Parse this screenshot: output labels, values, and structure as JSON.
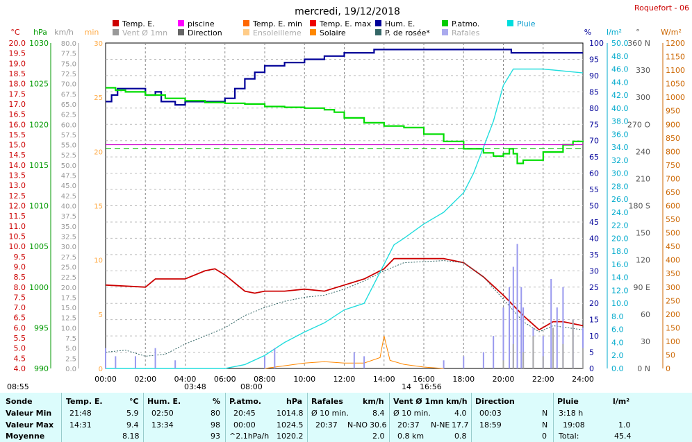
{
  "header": {
    "title": "mercredi, 19/12/2018",
    "station": "Roquefort - 06"
  },
  "legend": [
    {
      "label": "Temp. E.",
      "color": "#cc0000"
    },
    {
      "label": "piscine",
      "color": "#ff00ff"
    },
    {
      "label": "Temp. E. min",
      "color": "#ff6600"
    },
    {
      "label": "Temp. E. max",
      "color": "#ee0000"
    },
    {
      "label": "Hum. E.",
      "color": "#000099"
    },
    {
      "label": "P.atmo.",
      "color": "#00cc00"
    },
    {
      "label": "Pluie",
      "color": "#00dddd"
    },
    {
      "label": "Vent Ø 1mn",
      "color": "#999999"
    },
    {
      "label": "Direction",
      "color": "#666666"
    },
    {
      "label": "Ensoleilleme",
      "color": "#ffcc88"
    },
    {
      "label": "Solaire",
      "color": "#ff8800"
    },
    {
      "label": "P. de rosée*",
      "color": "#336666"
    },
    {
      "label": "Rafales",
      "color": "#aaaaee"
    }
  ],
  "axis_units": [
    "°C",
    "hPa",
    "km/h",
    "min",
    "%",
    "l/m²",
    "°",
    "W/m²"
  ],
  "axis_ticks": {
    "temp": [
      "4.0",
      "4.5",
      "5.0",
      "5.5",
      "6.0",
      "6.5",
      "7.0",
      "7.5",
      "8.0",
      "8.5",
      "9.0",
      "9.5",
      "10.0",
      "10.5",
      "11.0",
      "11.5",
      "12.0",
      "12.5",
      "13.0",
      "13.5",
      "14.0",
      "14.5",
      "15.0",
      "15.5",
      "16.0",
      "16.5",
      "17.0",
      "17.5",
      "18.0",
      "18.5",
      "19.0",
      "19.5",
      "20.0"
    ],
    "hpa": [
      "990",
      "995",
      "1000",
      "1005",
      "1010",
      "1015",
      "1020",
      "1025",
      "1030"
    ],
    "kmh": [
      "0.0",
      "2.5",
      "5.0",
      "7.5",
      "10.0",
      "12.5",
      "15.0",
      "17.5",
      "20.0",
      "22.5",
      "25.0",
      "27.5",
      "30.0",
      "32.5",
      "35.0",
      "37.5",
      "40.0",
      "42.5",
      "45.0",
      "47.5",
      "50.0",
      "52.5",
      "55.0",
      "57.5",
      "60.0",
      "62.5",
      "65.0",
      "67.5",
      "70.0",
      "72.5",
      "75.0",
      "77.5",
      "80.0"
    ],
    "min": [
      "0",
      "5",
      "10",
      "15",
      "20",
      "25",
      "30"
    ],
    "pct": [
      "0",
      "5",
      "10",
      "15",
      "20",
      "25",
      "30",
      "35",
      "40",
      "45",
      "50",
      "55",
      "60",
      "65",
      "70",
      "75",
      "80",
      "85",
      "90",
      "95",
      "100"
    ],
    "rain": [
      "0.0",
      "2.0",
      "4.0",
      "6.0",
      "8.0",
      "10.0",
      "12.0",
      "14.0",
      "16.0",
      "18.0",
      "20.0",
      "22.0",
      "24.0",
      "26.0",
      "28.0",
      "30.0",
      "32.0",
      "34.0",
      "36.0",
      "38.0",
      "40.0",
      "42.0",
      "44.0",
      "46.0",
      "48.0",
      "50.0"
    ],
    "deg": [
      "0 N",
      "30",
      "60",
      "90 E",
      "120",
      "150",
      "180 S",
      "210",
      "240",
      "270 O",
      "300",
      "330",
      "360 N"
    ],
    "wm2": [
      "0",
      "50",
      "100",
      "150",
      "200",
      "250",
      "300",
      "350",
      "400",
      "450",
      "500",
      "550",
      "600",
      "650",
      "700",
      "750",
      "800",
      "850",
      "900",
      "950",
      "1000",
      "1050",
      "1100",
      "1150",
      "1200"
    ],
    "x": [
      "00:00",
      "02:00",
      "04:00",
      "06:00",
      "08:00",
      "10:00",
      "12:00",
      "14:00",
      "16:00",
      "18:00",
      "20:00",
      "22:00",
      "24:00"
    ]
  },
  "sun_marks": [
    "08:55",
    "03:48",
    "08:00",
    "14",
    "16:56"
  ],
  "chart_data": {
    "type": "line",
    "x_unit": "hour",
    "xlim": [
      0,
      24
    ],
    "series": [
      {
        "name": "Hum. E.",
        "axis": "pct",
        "points": [
          [
            0,
            82
          ],
          [
            0.3,
            84
          ],
          [
            0.6,
            86
          ],
          [
            1.5,
            86
          ],
          [
            2,
            84
          ],
          [
            2.5,
            85
          ],
          [
            2.8,
            82
          ],
          [
            3.3,
            82
          ],
          [
            3.5,
            81
          ],
          [
            4,
            82
          ],
          [
            5,
            82
          ],
          [
            5.5,
            82
          ],
          [
            6,
            83
          ],
          [
            6.5,
            86
          ],
          [
            7,
            89
          ],
          [
            7.5,
            91
          ],
          [
            8,
            93
          ],
          [
            8.5,
            93
          ],
          [
            9,
            94
          ],
          [
            10,
            95
          ],
          [
            11,
            96
          ],
          [
            12,
            97
          ],
          [
            13,
            97
          ],
          [
            13.5,
            98
          ],
          [
            20,
            98
          ],
          [
            20.4,
            97
          ],
          [
            21,
            97
          ],
          [
            22,
            97
          ],
          [
            24,
            97
          ]
        ]
      },
      {
        "name": "P.atmo.",
        "axis": "hpa",
        "points": [
          [
            0,
            1024.5
          ],
          [
            0.5,
            1024.2
          ],
          [
            1,
            1024
          ],
          [
            2,
            1023.6
          ],
          [
            3,
            1023.2
          ],
          [
            4,
            1022.9
          ],
          [
            5,
            1022.7
          ],
          [
            6,
            1022.6
          ],
          [
            7,
            1022.5
          ],
          [
            8,
            1022.2
          ],
          [
            9,
            1022.1
          ],
          [
            10,
            1022
          ],
          [
            11,
            1021.8
          ],
          [
            11.5,
            1021.5
          ],
          [
            12,
            1020.8
          ],
          [
            13,
            1020.2
          ],
          [
            14,
            1019.8
          ],
          [
            15,
            1019.6
          ],
          [
            16,
            1018.8
          ],
          [
            17,
            1017.9
          ],
          [
            18,
            1017
          ],
          [
            19,
            1016.5
          ],
          [
            19.5,
            1016.1
          ],
          [
            20,
            1016.4
          ],
          [
            20.3,
            1017
          ],
          [
            20.5,
            1016.4
          ],
          [
            20.7,
            1015.2
          ],
          [
            21,
            1015.6
          ],
          [
            22,
            1016.6
          ],
          [
            23,
            1017.5
          ],
          [
            23.5,
            1017.9
          ],
          [
            24,
            1017.8
          ]
        ]
      },
      {
        "name": "Temp. E.",
        "axis": "temp",
        "points": [
          [
            0,
            8.1
          ],
          [
            2,
            8.0
          ],
          [
            2.5,
            8.4
          ],
          [
            4,
            8.4
          ],
          [
            5,
            8.8
          ],
          [
            5.5,
            8.9
          ],
          [
            6,
            8.6
          ],
          [
            7,
            7.8
          ],
          [
            7.5,
            7.7
          ],
          [
            8,
            7.8
          ],
          [
            9,
            7.8
          ],
          [
            10,
            7.9
          ],
          [
            11,
            7.8
          ],
          [
            12,
            8.1
          ],
          [
            13,
            8.4
          ],
          [
            14,
            8.9
          ],
          [
            14.5,
            9.4
          ],
          [
            17,
            9.4
          ],
          [
            18,
            9.2
          ],
          [
            19,
            8.5
          ],
          [
            20,
            7.6
          ],
          [
            21,
            6.6
          ],
          [
            21.8,
            5.9
          ],
          [
            22.5,
            6.3
          ],
          [
            23,
            6.3
          ],
          [
            24,
            6.1
          ]
        ]
      },
      {
        "name": "P. de rosée*",
        "axis": "temp",
        "points": [
          [
            0,
            4.8
          ],
          [
            1,
            4.9
          ],
          [
            2,
            4.6
          ],
          [
            3,
            4.7
          ],
          [
            4,
            5.2
          ],
          [
            5,
            5.6
          ],
          [
            6,
            6.0
          ],
          [
            7,
            6.6
          ],
          [
            8,
            7.0
          ],
          [
            9,
            7.3
          ],
          [
            10,
            7.5
          ],
          [
            11,
            7.6
          ],
          [
            12,
            7.9
          ],
          [
            13,
            8.3
          ],
          [
            14,
            8.8
          ],
          [
            15,
            9.2
          ],
          [
            17,
            9.3
          ],
          [
            18,
            9.2
          ],
          [
            19,
            8.5
          ],
          [
            20,
            7.4
          ],
          [
            21,
            6.3
          ],
          [
            21.8,
            5.8
          ],
          [
            22.5,
            6.1
          ],
          [
            24,
            5.9
          ]
        ]
      },
      {
        "name": "Pluie",
        "axis": "rain",
        "points": [
          [
            0,
            0
          ],
          [
            6,
            0
          ],
          [
            7,
            0.6
          ],
          [
            8,
            2
          ],
          [
            9,
            4
          ],
          [
            10,
            5.6
          ],
          [
            11,
            7
          ],
          [
            12,
            9
          ],
          [
            13,
            10
          ],
          [
            14,
            16
          ],
          [
            14.5,
            19
          ],
          [
            15,
            20
          ],
          [
            16,
            22.2
          ],
          [
            17,
            24
          ],
          [
            18,
            27
          ],
          [
            18.5,
            30
          ],
          [
            19,
            34
          ],
          [
            19.5,
            38
          ],
          [
            20,
            43.5
          ],
          [
            20.5,
            46
          ],
          [
            22,
            46
          ],
          [
            24,
            45.4
          ]
        ]
      },
      {
        "name": "piscine",
        "axis": "temp",
        "constant": 15.0
      },
      {
        "name": "Solaire",
        "axis": "wm2",
        "points": [
          [
            8,
            0
          ],
          [
            9,
            10
          ],
          [
            10,
            20
          ],
          [
            11,
            25
          ],
          [
            12,
            20
          ],
          [
            13,
            20
          ],
          [
            13.8,
            40
          ],
          [
            14,
            120
          ],
          [
            14.3,
            30
          ],
          [
            15,
            15
          ],
          [
            16,
            5
          ],
          [
            17,
            0
          ]
        ]
      },
      {
        "name": "Rafales",
        "axis": "kmh",
        "points": [
          [
            0,
            5
          ],
          [
            0.2,
            0
          ],
          [
            0.5,
            3
          ],
          [
            1,
            0
          ],
          [
            1.5,
            3
          ],
          [
            2,
            0
          ],
          [
            2.5,
            5
          ],
          [
            3,
            0
          ],
          [
            3.5,
            2
          ],
          [
            4,
            0
          ],
          [
            7,
            0
          ],
          [
            8,
            3
          ],
          [
            8.5,
            5
          ],
          [
            9,
            0
          ],
          [
            12,
            0
          ],
          [
            12.5,
            4
          ],
          [
            13,
            3
          ],
          [
            14,
            0
          ],
          [
            16,
            0
          ],
          [
            17,
            2
          ],
          [
            18,
            3
          ],
          [
            19,
            4
          ],
          [
            19.5,
            8
          ],
          [
            20,
            15
          ],
          [
            20.3,
            20
          ],
          [
            20.5,
            25
          ],
          [
            20.7,
            30.6
          ],
          [
            20.9,
            20
          ],
          [
            21,
            15
          ],
          [
            21.5,
            10
          ],
          [
            22,
            8
          ],
          [
            22.4,
            22
          ],
          [
            22.7,
            15
          ],
          [
            23,
            20
          ],
          [
            23.5,
            12
          ],
          [
            24,
            10
          ]
        ]
      },
      {
        "name": "Vent Ø 1mn",
        "axis": "kmh",
        "points": [
          [
            20,
            2
          ],
          [
            20.5,
            6
          ],
          [
            21,
            4
          ],
          [
            21.5,
            8
          ],
          [
            22,
            3
          ],
          [
            22.5,
            10
          ],
          [
            23,
            6
          ],
          [
            23.5,
            12
          ],
          [
            24,
            5
          ]
        ]
      }
    ]
  },
  "stats": {
    "headers": {
      "sonde": "Sonde",
      "temp": "Temp. E.",
      "temp_u": "°C",
      "hum": "Hum. E.",
      "hum_u": "%",
      "patmo": "P.atmo.",
      "patmo_u": "hPa",
      "raf": "Rafales",
      "raf_u": "km/h",
      "vent": "Vent Ø 1mn",
      "vent_u": "km/h",
      "dir": "Direction",
      "pluie": "Pluie",
      "pluie_u": "l/m²"
    },
    "rows": {
      "min": {
        "label": "Valeur Min",
        "temp_t": "21:48",
        "temp_v": "5.9",
        "hum_t": "02:50",
        "hum_v": "80",
        "patmo_t": "20:45",
        "patmo_v": "1014.8",
        "raf_t": "Ø 10 min.",
        "raf_v": "8.4",
        "vent_t": "Ø 10 min.",
        "vent_v": "4.0",
        "dir_t": "00:03",
        "dir_v": "N",
        "pluie_t": "3:18 h",
        "pluie_v": ""
      },
      "max": {
        "label": "Valeur Max",
        "temp_t": "14:31",
        "temp_v": "9.4",
        "hum_t": "13:34",
        "hum_v": "98",
        "patmo_t": "00:00",
        "patmo_v": "1024.5",
        "raf_t": "20:37",
        "raf_d": "N-NO",
        "raf_v": "30.6",
        "vent_t": "20:37",
        "vent_d": "N-NE",
        "vent_v": "17.7",
        "dir_t": "18:59",
        "dir_v": "N",
        "pluie_t": "19:08",
        "pluie_v": "1.0"
      },
      "moy": {
        "label": "Moyenne",
        "temp_t": "",
        "temp_v": "8.18",
        "hum_t": "",
        "hum_v": "93",
        "patmo_t": "^2.1hPa/h",
        "patmo_v": "1020.2",
        "raf_t": "",
        "raf_v": "2.0",
        "vent_t": "0.8 km",
        "vent_v": "0.8",
        "dir_t": "",
        "dir_v": "0",
        "pluie_t": "Total:",
        "pluie_v": "45.4"
      }
    }
  }
}
